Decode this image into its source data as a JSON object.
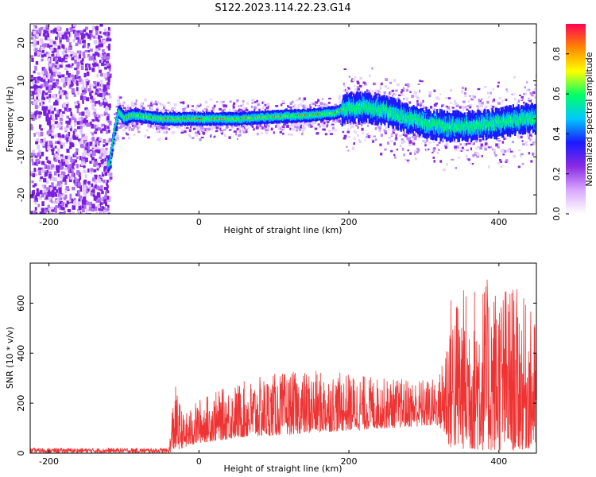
{
  "title": "S122.2023.114.22.23.G14",
  "chart_data": [
    {
      "type": "heatmap",
      "xlabel": "Height of straight line (km)",
      "ylabel": "Frequency (Hz)",
      "xlim": [
        -225,
        450
      ],
      "ylim": [
        -25,
        25
      ],
      "xticks": [
        -200,
        0,
        200,
        400
      ],
      "yticks": [
        -20,
        -10,
        0,
        10,
        20
      ],
      "colorbar": {
        "label": "Normalized spectral amplitude",
        "range": [
          0,
          0.95
        ],
        "ticks": [
          0.0,
          0.2,
          0.4,
          0.6,
          0.8
        ],
        "colormap": [
          "#ffffff",
          "#d9a8ff",
          "#8a2be2",
          "#1a1aff",
          "#00c8ff",
          "#00ff66",
          "#ffff00",
          "#ff8800",
          "#ff0055"
        ]
      },
      "ridge": [
        {
          "x": -120,
          "y": -12
        },
        {
          "x": -115,
          "y": -5
        },
        {
          "x": -108,
          "y": 2
        },
        {
          "x": -100,
          "y": 0
        },
        {
          "x": -90,
          "y": 1
        },
        {
          "x": -50,
          "y": 0
        },
        {
          "x": 0,
          "y": 0
        },
        {
          "x": 50,
          "y": 0
        },
        {
          "x": 100,
          "y": 0.5
        },
        {
          "x": 150,
          "y": 1
        },
        {
          "x": 180,
          "y": 1.5
        },
        {
          "x": 200,
          "y": 3
        },
        {
          "x": 220,
          "y": 3
        },
        {
          "x": 250,
          "y": 2
        },
        {
          "x": 280,
          "y": 0
        },
        {
          "x": 300,
          "y": -1
        },
        {
          "x": 330,
          "y": -2
        },
        {
          "x": 360,
          "y": -2
        },
        {
          "x": 400,
          "y": -1
        },
        {
          "x": 430,
          "y": 0
        },
        {
          "x": 450,
          "y": 0
        }
      ]
    },
    {
      "type": "line",
      "xlabel": "Height of straight line (km)",
      "ylabel": "SNR (10 * v/v)",
      "xlim": [
        -225,
        450
      ],
      "ylim": [
        0,
        760
      ],
      "xticks": [
        -200,
        0,
        200,
        400
      ],
      "yticks": [
        0,
        200,
        400,
        600
      ],
      "color": "#ee3333",
      "envelope": [
        {
          "x": -225,
          "low": 0,
          "high": 20
        },
        {
          "x": -40,
          "low": 0,
          "high": 20
        },
        {
          "x": -33,
          "low": 10,
          "high": 290
        },
        {
          "x": -20,
          "low": 20,
          "high": 150
        },
        {
          "x": 0,
          "low": 40,
          "high": 220
        },
        {
          "x": 50,
          "low": 60,
          "high": 280
        },
        {
          "x": 100,
          "low": 70,
          "high": 320
        },
        {
          "x": 150,
          "low": 80,
          "high": 330
        },
        {
          "x": 200,
          "low": 90,
          "high": 320
        },
        {
          "x": 250,
          "low": 100,
          "high": 300
        },
        {
          "x": 320,
          "low": 110,
          "high": 300
        },
        {
          "x": 335,
          "low": 20,
          "high": 640
        },
        {
          "x": 380,
          "low": 10,
          "high": 700
        },
        {
          "x": 420,
          "low": 10,
          "high": 680
        },
        {
          "x": 450,
          "low": 20,
          "high": 540
        }
      ]
    }
  ]
}
